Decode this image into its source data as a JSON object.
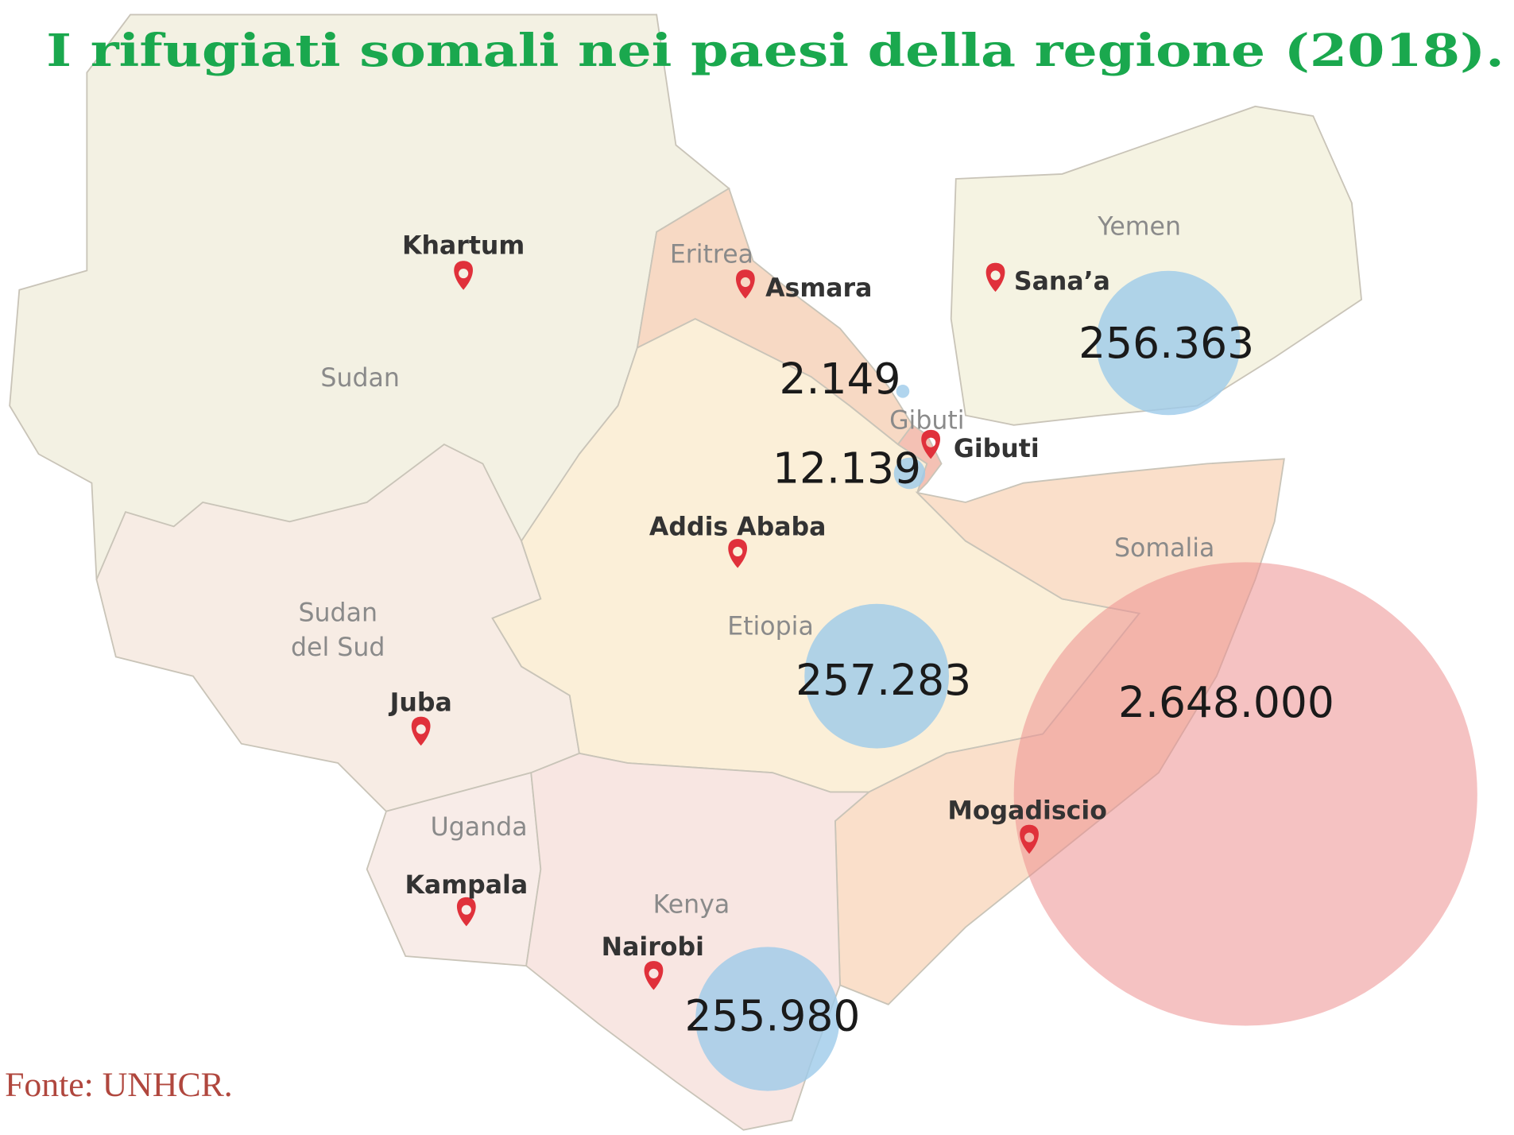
{
  "title": "I rifugiati somali nei paesi della regione (2018).",
  "source": "Fonte: UNHCR.",
  "countries": [
    "Sudan",
    "Eritrea",
    "Yemen",
    "Gibuti",
    "Somalia",
    "Sudan del Sud",
    "Etiopia",
    "Uganda",
    "Kenya"
  ],
  "cities": [
    "Khartum",
    "Asmara",
    "Sana’a",
    "Gibuti",
    "Addis Ababa",
    "Juba",
    "Mogadiscio",
    "Kampala",
    "Nairobi"
  ],
  "refugees": [
    {
      "label": "256.363",
      "value": 256363,
      "color": "#9ecbea"
    },
    {
      "label": "2.149",
      "value": 2149,
      "color": "#9ecbea"
    },
    {
      "label": "12.139",
      "value": 12139,
      "color": "#9ecbea"
    },
    {
      "label": "257.283",
      "value": 257283,
      "color": "#9ecbea"
    },
    {
      "label": "2.648.000",
      "value": 2648000,
      "color": "#ec8f8f"
    },
    {
      "label": "255.980",
      "value": 255980,
      "color": "#9ecbea"
    }
  ]
}
